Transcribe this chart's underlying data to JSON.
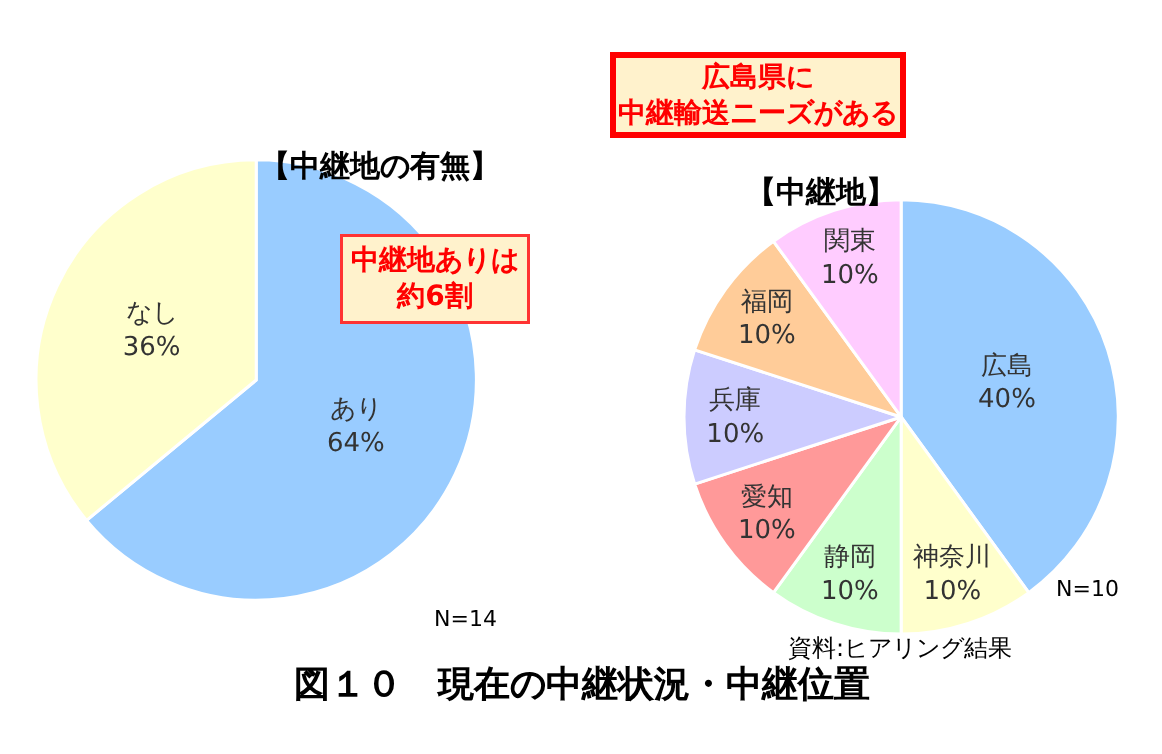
{
  "chart_data": [
    {
      "type": "pie",
      "title": "【中継地の有無】",
      "categories": [
        "あり",
        "なし"
      ],
      "values": [
        64,
        36
      ],
      "value_labels": [
        "64%",
        "36%"
      ],
      "colors": [
        "#99ccff",
        "#ffffcc"
      ],
      "annotations": [
        "中継地ありは",
        "約6割",
        "N=14"
      ]
    },
    {
      "type": "pie",
      "title": "【中継地】",
      "categories": [
        "広島",
        "神奈川",
        "静岡",
        "愛知",
        "兵庫",
        "福岡",
        "関東"
      ],
      "values": [
        40,
        10,
        10,
        10,
        10,
        10,
        10
      ],
      "value_labels": [
        "40%",
        "10%",
        "10%",
        "10%",
        "10%",
        "10%",
        "10%"
      ],
      "colors": [
        "#99ccff",
        "#ffffcc",
        "#ccffcc",
        "#ff9999",
        "#ccccff",
        "#ffcc99",
        "#ffccff"
      ],
      "annotations": [
        "広島県に",
        "中継輸送ニーズがある",
        "N=10",
        "資料:ヒアリング結果",
        "図１０　現在の中継状況・中継位置"
      ]
    }
  ]
}
